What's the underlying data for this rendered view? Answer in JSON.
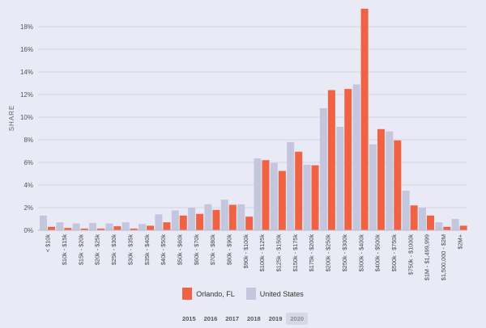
{
  "chart_data": {
    "type": "bar",
    "ylabel": "SHARE",
    "ylim": [
      0,
      19.8
    ],
    "yticks": [
      "0%",
      "2%",
      "4%",
      "6%",
      "8%",
      "10%",
      "12%",
      "14%",
      "16%",
      "18%"
    ],
    "ytick_values": [
      0,
      2,
      4,
      6,
      8,
      10,
      12,
      14,
      16,
      18
    ],
    "categories": [
      "< $10k",
      "$10k - $15k",
      "$15k - $20k",
      "$20k - $25k",
      "$25k - $30k",
      "$30k - $35k",
      "$35k - $40k",
      "$40k - $50k",
      "$50k - $60k",
      "$60k - $70k",
      "$70k - $80k",
      "$80k - $90k",
      "$90k - $100k",
      "$100k - $125k",
      "$125k - $150k",
      "$150k - $175k",
      "$175k - $200k",
      "$200k - $250k",
      "$250k - $300k",
      "$300k - $400k",
      "$400k - $500k",
      "$500k - $750k",
      "$750k - $1000k",
      "$1M - $1,499,999",
      "$1,500,000 - $2M",
      "$2M+"
    ],
    "series": [
      {
        "name": "United States",
        "color": "#c3c6dd",
        "values": [
          1.3,
          0.7,
          0.6,
          0.65,
          0.6,
          0.7,
          0.55,
          1.4,
          1.75,
          2.0,
          2.3,
          2.7,
          2.3,
          6.35,
          5.95,
          7.8,
          5.8,
          10.8,
          9.15,
          12.9,
          7.6,
          8.75,
          3.5,
          2.0,
          0.7,
          1.0
        ]
      },
      {
        "name": "Orlando, FL",
        "color": "#ef6243",
        "values": [
          0.3,
          0.2,
          0.15,
          0.15,
          0.35,
          0.15,
          0.4,
          0.7,
          1.3,
          1.45,
          1.8,
          2.25,
          1.2,
          6.2,
          5.25,
          6.95,
          5.75,
          12.4,
          12.5,
          19.6,
          8.95,
          7.95,
          2.2,
          1.3,
          0.3,
          0.4
        ]
      }
    ],
    "legend": [
      "Orlando, FL",
      "United States"
    ],
    "legend_position": "bottom"
  },
  "years": [
    "2015",
    "2016",
    "2017",
    "2018",
    "2019",
    "2020"
  ],
  "selected_year": "2020"
}
